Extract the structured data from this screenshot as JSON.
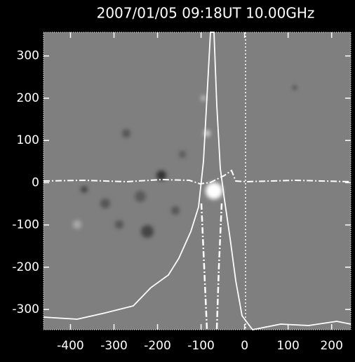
{
  "chart_data": {
    "type": "image",
    "title": "2007/01/05 09:18UT 10.00GHz",
    "xlim": [
      -462,
      244
    ],
    "xticks": [
      -400,
      -300,
      -200,
      -100,
      0,
      100,
      200
    ],
    "ylim": [
      -348,
      356
    ],
    "yticks": [
      -300,
      -200,
      -100,
      0,
      100,
      200,
      300
    ]
  }
}
